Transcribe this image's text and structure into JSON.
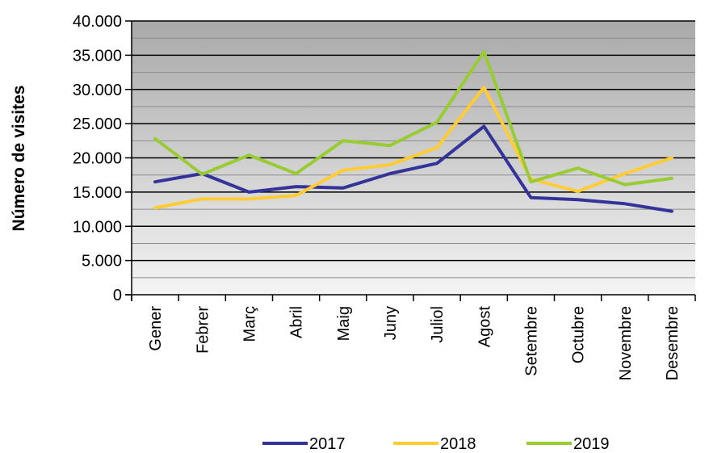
{
  "chart_data": {
    "type": "line",
    "title": "",
    "xlabel": "",
    "ylabel": "Número de visites",
    "ylim": [
      0,
      40000
    ],
    "y_ticks": [
      0,
      5000,
      10000,
      15000,
      20000,
      25000,
      30000,
      35000,
      40000
    ],
    "y_tick_labels": [
      "0",
      "5.000",
      "10.000",
      "15.000",
      "20.000",
      "25.000",
      "30.000",
      "35.000",
      "40.000"
    ],
    "grid": true,
    "legend_position": "bottom",
    "categories": [
      "Gener",
      "Febrer",
      "Març",
      "Abril",
      "Maig",
      "Juny",
      "Juliol",
      "Agost",
      "Setembre",
      "Octubre",
      "Novembre",
      "Desembre"
    ],
    "series": [
      {
        "name": "2017",
        "color": "#333399",
        "values": [
          16500,
          17700,
          15000,
          15800,
          15600,
          17700,
          19200,
          24600,
          14200,
          13900,
          13300,
          12200
        ]
      },
      {
        "name": "2018",
        "color": "#FFCC33",
        "values": [
          12700,
          14000,
          14000,
          14500,
          18200,
          19000,
          21500,
          30300,
          16900,
          15100,
          17700,
          20000
        ]
      },
      {
        "name": "2019",
        "color": "#99CC33",
        "values": [
          22800,
          17600,
          20400,
          17700,
          22500,
          21800,
          25200,
          35500,
          16500,
          18500,
          16100,
          17000
        ]
      }
    ]
  }
}
